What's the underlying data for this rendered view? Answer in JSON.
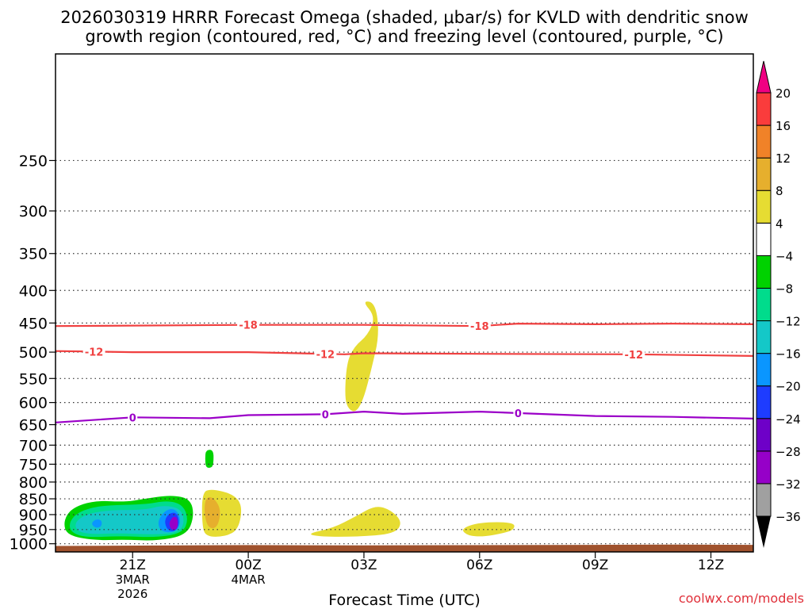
{
  "chart_data": {
    "type": "heatmap",
    "title_line1": "2026030319 HRRR Forecast Omega (shaded, μbar/s) for KVLD with dendritic snow",
    "title_line2": "growth region (contoured, red, °C) and freezing level (contoured, purple, °C)",
    "xlabel": "Forecast Time (UTC)",
    "ylabel": "",
    "credit": "coolwx.com/models",
    "xlim_hours": [
      -2.0,
      16.1
    ],
    "ylim_hPa": [
      1030,
      170
    ],
    "x_ticks": [
      {
        "hour": 0,
        "label": "21Z",
        "sub1": "3MAR",
        "sub2": "2026"
      },
      {
        "hour": 3,
        "label": "00Z",
        "sub1": "4MAR",
        "sub2": ""
      },
      {
        "hour": 6,
        "label": "03Z",
        "sub1": "",
        "sub2": ""
      },
      {
        "hour": 9,
        "label": "06Z",
        "sub1": "",
        "sub2": ""
      },
      {
        "hour": 12,
        "label": "09Z",
        "sub1": "",
        "sub2": ""
      },
      {
        "hour": 15,
        "label": "12Z",
        "sub1": "",
        "sub2": ""
      }
    ],
    "y_ticks": [
      250,
      300,
      350,
      400,
      450,
      500,
      550,
      600,
      650,
      700,
      750,
      800,
      850,
      900,
      950,
      1000
    ],
    "colorbar": {
      "levels": [
        -36,
        -32,
        -28,
        -24,
        -20,
        -16,
        -12,
        -8,
        -4,
        4,
        8,
        12,
        16,
        20
      ],
      "colors": [
        "#a0a0a0",
        "#9600c8",
        "#6e00c8",
        "#1e3cff",
        "#0a96ff",
        "#14c8c8",
        "#00dc8c",
        "#00d200",
        "#ffffff",
        "#e6dc32",
        "#e6af2d",
        "#f08228",
        "#fa3c3c",
        "#f00082"
      ],
      "under_color": "#000000",
      "over_color": "#f00082"
    },
    "contours": [
      {
        "name": "isotherm -18C",
        "label": "-18",
        "color": "#f04040",
        "points": [
          [
            -2,
            455
          ],
          [
            3,
            453
          ],
          [
            6,
            453
          ],
          [
            9,
            455
          ],
          [
            10,
            451
          ],
          [
            12,
            452
          ],
          [
            14,
            451
          ],
          [
            16.1,
            452
          ]
        ],
        "label_hours": [
          3,
          9
        ]
      },
      {
        "name": "isotherm -12C",
        "label": "-12",
        "color": "#f04040",
        "points": [
          [
            -2,
            498
          ],
          [
            0,
            500
          ],
          [
            3,
            500
          ],
          [
            5.5,
            504
          ],
          [
            6,
            502
          ],
          [
            9,
            503
          ],
          [
            13,
            504
          ],
          [
            16.1,
            507
          ]
        ],
        "label_hours": [
          -1,
          5,
          13
        ]
      },
      {
        "name": "freezing level 0C",
        "label": "0",
        "color": "#9b00c8",
        "points": [
          [
            -2,
            645
          ],
          [
            0,
            633
          ],
          [
            2,
            635
          ],
          [
            3,
            628
          ],
          [
            5,
            626
          ],
          [
            6,
            620
          ],
          [
            7,
            625
          ],
          [
            9,
            620
          ],
          [
            12,
            630
          ],
          [
            14,
            632
          ],
          [
            16.1,
            636
          ]
        ],
        "label_hours": [
          0,
          5,
          10
        ]
      }
    ],
    "shaded_regions": [
      {
        "name": "upward motion -8 to -12",
        "color": "#00d200",
        "points": [
          [
            -1.8,
            925
          ],
          [
            -1.6,
            880
          ],
          [
            -1,
            855
          ],
          [
            -0.2,
            860
          ],
          [
            0.3,
            850
          ],
          [
            1,
            838
          ],
          [
            1.5,
            850
          ],
          [
            1.6,
            905
          ],
          [
            1.4,
            970
          ],
          [
            0.6,
            990
          ],
          [
            -0.2,
            985
          ],
          [
            -1,
            988
          ],
          [
            -1.7,
            970
          ]
        ]
      },
      {
        "name": "upward motion -12 to -16",
        "color": "#00dc8c",
        "points": [
          [
            -1.65,
            925
          ],
          [
            -1.4,
            890
          ],
          [
            -0.8,
            870
          ],
          [
            0.3,
            868
          ],
          [
            0.9,
            855
          ],
          [
            1.3,
            868
          ],
          [
            1.45,
            915
          ],
          [
            1.3,
            962
          ],
          [
            0.6,
            978
          ],
          [
            -0.3,
            972
          ],
          [
            -1.2,
            978
          ],
          [
            -1.6,
            960
          ]
        ]
      },
      {
        "name": "upward motion -16 to -20",
        "color": "#14c8c8",
        "points": [
          [
            -1.5,
            925
          ],
          [
            -1.2,
            898
          ],
          [
            -0.6,
            885
          ],
          [
            0.3,
            885
          ],
          [
            0.8,
            870
          ],
          [
            1.25,
            880
          ],
          [
            1.35,
            925
          ],
          [
            1.2,
            960
          ],
          [
            0.6,
            968
          ],
          [
            -0.4,
            962
          ],
          [
            -1.1,
            967
          ],
          [
            -1.45,
            955
          ]
        ]
      },
      {
        "name": "upward motion -20 to -24",
        "color": "#0a96ff",
        "points": [
          [
            0.65,
            920
          ],
          [
            0.85,
            885
          ],
          [
            1.1,
            880
          ],
          [
            1.25,
            910
          ],
          [
            1.2,
            950
          ],
          [
            0.95,
            962
          ],
          [
            0.7,
            952
          ]
        ]
      },
      {
        "name": "upward motion -24 to -28",
        "color": "#1e3cff",
        "points": [
          [
            0.82,
            920
          ],
          [
            0.95,
            895
          ],
          [
            1.15,
            893
          ],
          [
            1.22,
            930
          ],
          [
            1.1,
            958
          ],
          [
            0.9,
            952
          ]
        ]
      },
      {
        "name": "upward motion -28 to -32",
        "color": "#9600c8",
        "points": [
          [
            0.95,
            925
          ],
          [
            1.05,
            905
          ],
          [
            1.17,
            910
          ],
          [
            1.17,
            948
          ],
          [
            1.03,
            953
          ],
          [
            0.96,
            940
          ]
        ]
      },
      {
        "name": "upward motion core -16 to -20",
        "color": "#0a96ff",
        "points": [
          [
            -1.05,
            925
          ],
          [
            -0.95,
            915
          ],
          [
            -0.8,
            918
          ],
          [
            -0.8,
            940
          ],
          [
            -0.95,
            945
          ],
          [
            -1.05,
            935
          ]
        ]
      },
      {
        "name": "upward motion patch -8 to -12",
        "color": "#00d200",
        "points": [
          [
            1.9,
            712
          ],
          [
            2.1,
            712
          ],
          [
            2.1,
            748
          ],
          [
            2.05,
            760
          ],
          [
            1.9,
            760
          ],
          [
            1.88,
            735
          ]
        ]
      },
      {
        "name": "downward motion 4 to 8 (low)",
        "color": "#e6dc32",
        "points": [
          [
            1.8,
            830
          ],
          [
            2.05,
            820
          ],
          [
            2.6,
            835
          ],
          [
            2.85,
            870
          ],
          [
            2.75,
            950
          ],
          [
            2.4,
            975
          ],
          [
            1.9,
            975
          ],
          [
            1.8,
            935
          ]
        ]
      },
      {
        "name": "downward motion 8 to 12",
        "color": "#e6af2d",
        "points": [
          [
            1.9,
            845
          ],
          [
            2.1,
            845
          ],
          [
            2.3,
            885
          ],
          [
            2.2,
            945
          ],
          [
            1.95,
            945
          ],
          [
            1.85,
            890
          ]
        ]
      },
      {
        "name": "downward motion 4 to 8 (mid)",
        "color": "#e6dc32",
        "points": [
          [
            4.5,
            965
          ],
          [
            5.2,
            945
          ],
          [
            5.8,
            905
          ],
          [
            6.3,
            870
          ],
          [
            6.7,
            885
          ],
          [
            7.0,
            925
          ],
          [
            6.8,
            965
          ],
          [
            5.8,
            975
          ],
          [
            4.9,
            975
          ]
        ]
      },
      {
        "name": "downward motion 4 to 8 (upper)",
        "color": "#e6dc32",
        "points": [
          [
            5.5,
            590
          ],
          [
            5.55,
            520
          ],
          [
            5.75,
            490
          ],
          [
            6.1,
            470
          ],
          [
            6.3,
            440
          ],
          [
            5.95,
            415
          ],
          [
            6.3,
            418
          ],
          [
            6.4,
            470
          ],
          [
            6.2,
            530
          ],
          [
            6.0,
            590
          ],
          [
            5.8,
            622
          ],
          [
            5.6,
            615
          ]
        ]
      },
      {
        "name": "downward motion 4 to 8 (east)",
        "color": "#e6dc32",
        "points": [
          [
            8.5,
            948
          ],
          [
            9.0,
            925
          ],
          [
            9.9,
            925
          ],
          [
            9.9,
            950
          ],
          [
            9.6,
            963
          ],
          [
            9.1,
            975
          ],
          [
            8.7,
            972
          ]
        ]
      }
    ],
    "terrain": {
      "name": "ground",
      "color": "#a0522d",
      "points": [
        [
          -2,
          1030
        ],
        [
          -2,
          1008
        ],
        [
          3,
          1005
        ],
        [
          6,
          1006
        ],
        [
          12,
          1004
        ],
        [
          14,
          1003
        ],
        [
          16.1,
          1004
        ],
        [
          16.1,
          1030
        ]
      ]
    }
  }
}
